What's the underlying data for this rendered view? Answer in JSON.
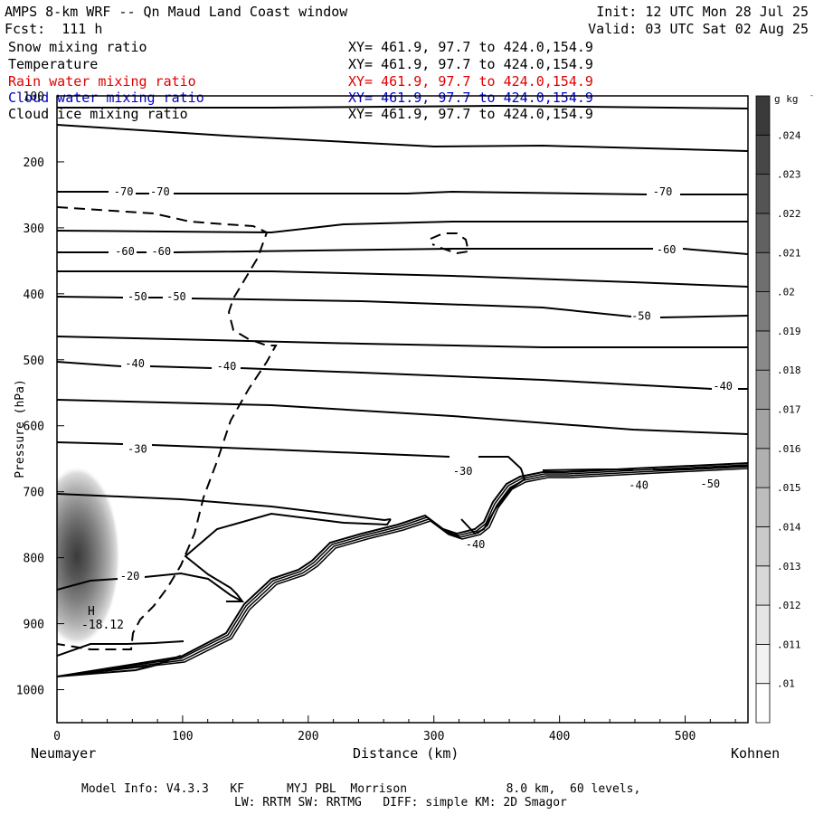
{
  "header": {
    "title": "AMPS 8-km WRF -- Qn Maud Land Coast window",
    "init": "Init: 12 UTC Mon 28 Jul 25",
    "fcst": "Fcst:  111 h",
    "valid": "Valid: 03 UTC Sat 02 Aug 25"
  },
  "fields": [
    {
      "name": "Snow mixing ratio",
      "xy": "XY= 461.9, 97.7 to 424.0,154.9",
      "color": "#000000"
    },
    {
      "name": "Temperature",
      "xy": "XY= 461.9, 97.7 to 424.0,154.9",
      "color": "#000000"
    },
    {
      "name": "Rain water mixing ratio",
      "xy": "XY= 461.9, 97.7 to 424.0,154.9",
      "color": "#e00000"
    },
    {
      "name": "Cloud water mixing ratio",
      "xy": "XY= 461.9, 97.7 to 424.0,154.9",
      "color": "#0000cc"
    },
    {
      "name": "Cloud ice mixing ratio",
      "xy": "XY= 461.9, 97.7 to 424.0,154.9",
      "color": "#000000"
    }
  ],
  "chart_data": {
    "type": "cross-section contour",
    "xlabel": "Distance (km)",
    "ylabel": "Pressure (hPa)",
    "xlim": [
      0,
      550
    ],
    "ylim": [
      1050,
      100
    ],
    "xticks": [
      0,
      100,
      200,
      300,
      400,
      500
    ],
    "yticks": [
      100,
      200,
      300,
      400,
      500,
      600,
      700,
      800,
      900,
      1000
    ],
    "left_endpoint": "Neumayer",
    "right_endpoint": "Kohnen",
    "colorbar": {
      "unit": "g kg",
      "unit_exponent": "-1",
      "levels": [
        ".01",
        ".011",
        ".012",
        ".013",
        ".014",
        ".015",
        ".016",
        ".017",
        ".018",
        ".019",
        ".02",
        ".021",
        ".022",
        ".023",
        ".024"
      ]
    },
    "max_marker": {
      "label": "H",
      "value": "-18.12",
      "x": 28,
      "p": 882
    },
    "shading_maximum": {
      "x": 19,
      "p": 800,
      "value": 0.024
    },
    "isotherm_labels": [
      {
        "text": "-70",
        "x": 53,
        "p": 245
      },
      {
        "text": "-70",
        "x": 82,
        "p": 245
      },
      {
        "text": "-70",
        "x": 482,
        "p": 245
      },
      {
        "text": "-60",
        "x": 54,
        "p": 336
      },
      {
        "text": "-60",
        "x": 83,
        "p": 336
      },
      {
        "text": "-60",
        "x": 485,
        "p": 333
      },
      {
        "text": "-50",
        "x": 64,
        "p": 404
      },
      {
        "text": "-50",
        "x": 95,
        "p": 404
      },
      {
        "text": "-50",
        "x": 465,
        "p": 434
      },
      {
        "text": "-40",
        "x": 62,
        "p": 506
      },
      {
        "text": "-40",
        "x": 135,
        "p": 510
      },
      {
        "text": "-40",
        "x": 530,
        "p": 540
      },
      {
        "text": "-30",
        "x": 64,
        "p": 635
      },
      {
        "text": "-30",
        "x": 323,
        "p": 669
      },
      {
        "text": "-20",
        "x": 58,
        "p": 828
      },
      {
        "text": "-40",
        "x": 333,
        "p": 780
      },
      {
        "text": "-40",
        "x": 463,
        "p": 690
      },
      {
        "text": "-50",
        "x": 520,
        "p": 688
      }
    ]
  },
  "footer": {
    "line1": "Model Info: V4.3.3   KF      MYJ PBL  Morrison              8.0 km,  60 levels,",
    "line2": "LW: RRTM SW: RRTMG   DIFF: simple KM: 2D Smagor"
  }
}
